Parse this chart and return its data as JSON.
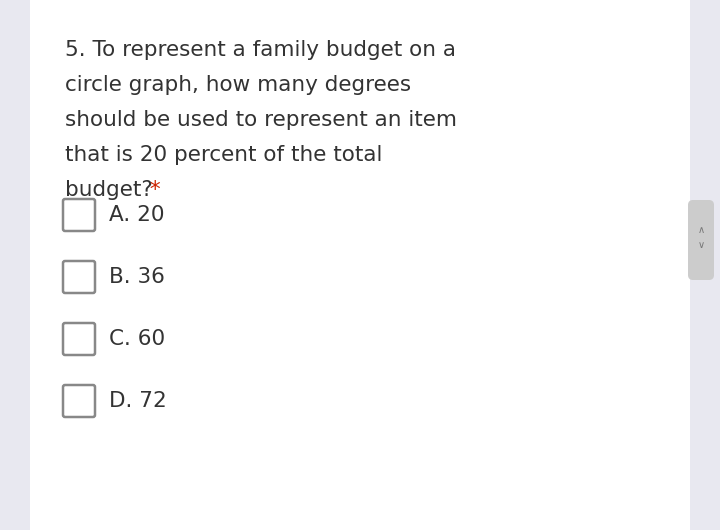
{
  "background_color": "#f8f8fc",
  "white_color": "#ffffff",
  "outer_bg_color": "#e8e8f0",
  "question_lines": [
    "5. To represent a family budget on a",
    "circle graph, how many degrees",
    "should be used to represent an item",
    "that is 20 percent of the total",
    "budget?"
  ],
  "asterisk": " *",
  "asterisk_color": "#cc2200",
  "question_font_size": 15.5,
  "options": [
    {
      "label": "A. 20"
    },
    {
      "label": "B. 36"
    },
    {
      "label": "C. 60"
    },
    {
      "label": "D. 72"
    }
  ],
  "option_font_size": 15.5,
  "text_color": "#333333",
  "checkbox_color": "#888888",
  "right_tab_color": "#cccccc",
  "scroll_bg": "#dcdce8"
}
